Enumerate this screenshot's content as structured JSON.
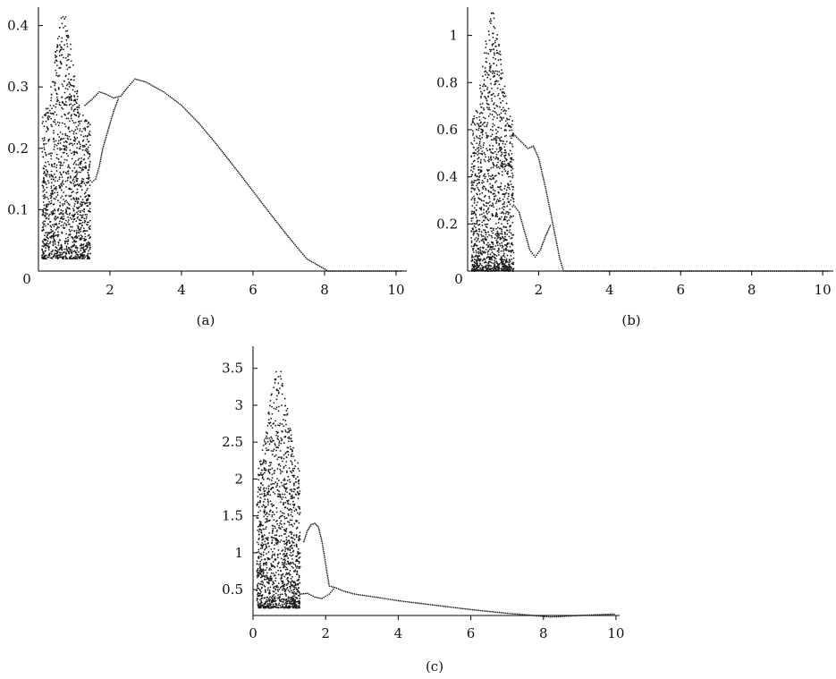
{
  "chart_data": [
    {
      "type": "scatter",
      "panel_label": "(a)",
      "origin_label": "0",
      "xlim": [
        0,
        10.3
      ],
      "ylim": [
        0,
        0.43
      ],
      "xticks": [
        2,
        4,
        6,
        8,
        10
      ],
      "xtick_labels": [
        "2",
        "4",
        "6",
        "8",
        "10"
      ],
      "yticks": [
        0.1,
        0.2,
        0.3,
        0.4
      ],
      "ytick_labels": [
        "0.1",
        "0.2",
        "0.3",
        "0.4"
      ],
      "chaotic_region": {
        "x_range": [
          0.1,
          1.45
        ],
        "y_range": [
          0.02,
          0.42
        ],
        "seed": 11
      },
      "upper_branch": [
        [
          1.3,
          0.27
        ],
        [
          1.5,
          0.28
        ],
        [
          1.7,
          0.292
        ],
        [
          1.9,
          0.288
        ],
        [
          2.1,
          0.282
        ],
        [
          2.3,
          0.285
        ],
        [
          2.5,
          0.3
        ],
        [
          2.7,
          0.313
        ],
        [
          3.0,
          0.308
        ],
        [
          3.5,
          0.292
        ],
        [
          4.0,
          0.27
        ],
        [
          4.5,
          0.24
        ],
        [
          5.0,
          0.205
        ],
        [
          5.5,
          0.168
        ],
        [
          6.0,
          0.13
        ],
        [
          6.5,
          0.092
        ],
        [
          7.0,
          0.055
        ],
        [
          7.5,
          0.02
        ],
        [
          8.1,
          0.0
        ],
        [
          10.2,
          0.0
        ]
      ],
      "lower_branch": [
        [
          1.4,
          0.15
        ],
        [
          1.5,
          0.145
        ],
        [
          1.6,
          0.15
        ],
        [
          1.7,
          0.17
        ],
        [
          1.8,
          0.2
        ],
        [
          1.95,
          0.23
        ],
        [
          2.1,
          0.26
        ],
        [
          2.25,
          0.283
        ]
      ]
    },
    {
      "type": "scatter",
      "panel_label": "(b)",
      "origin_label": "0",
      "xlim": [
        0,
        10.3
      ],
      "ylim": [
        0,
        1.12
      ],
      "xticks": [
        2,
        4,
        6,
        8,
        10
      ],
      "xtick_labels": [
        "2",
        "4",
        "6",
        "8",
        "10"
      ],
      "yticks": [
        0.2,
        0.4,
        0.6,
        0.8,
        1.0
      ],
      "ytick_labels": [
        "0.2",
        "0.4",
        "0.6",
        "0.8",
        "1"
      ],
      "chaotic_region": {
        "x_range": [
          0.1,
          1.3
        ],
        "y_range": [
          0.0,
          1.1
        ],
        "seed": 23
      },
      "upper_branch": [
        [
          1.3,
          0.58
        ],
        [
          1.5,
          0.55
        ],
        [
          1.7,
          0.52
        ],
        [
          1.85,
          0.53
        ],
        [
          2.0,
          0.48
        ],
        [
          2.2,
          0.35
        ],
        [
          2.4,
          0.2
        ],
        [
          2.6,
          0.05
        ],
        [
          2.7,
          0.0
        ],
        [
          10.2,
          0.0
        ]
      ],
      "lower_branch": [
        [
          1.3,
          0.28
        ],
        [
          1.45,
          0.25
        ],
        [
          1.6,
          0.17
        ],
        [
          1.75,
          0.09
        ],
        [
          1.9,
          0.06
        ],
        [
          2.05,
          0.09
        ],
        [
          2.2,
          0.15
        ],
        [
          2.35,
          0.2
        ]
      ]
    },
    {
      "type": "scatter",
      "panel_label": "(c)",
      "origin_label": "",
      "xlim": [
        0,
        10.1
      ],
      "ylim": [
        0.15,
        3.8
      ],
      "xticks": [
        0,
        2,
        4,
        6,
        8,
        10
      ],
      "xtick_labels": [
        "0",
        "2",
        "4",
        "6",
        "8",
        "10"
      ],
      "yticks": [
        0.5,
        1.0,
        1.5,
        2.0,
        2.5,
        3.0,
        3.5
      ],
      "ytick_labels": [
        "0.5",
        "1",
        "1.5",
        "2",
        "2.5",
        "3",
        "3.5"
      ],
      "chaotic_region": {
        "x_range": [
          0.1,
          1.3
        ],
        "y_range": [
          0.25,
          3.6
        ],
        "seed": 37
      },
      "upper_branch": [
        [
          1.4,
          1.15
        ],
        [
          1.5,
          1.3
        ],
        [
          1.6,
          1.38
        ],
        [
          1.7,
          1.4
        ],
        [
          1.8,
          1.35
        ],
        [
          1.9,
          1.15
        ],
        [
          2.0,
          0.85
        ],
        [
          2.1,
          0.55
        ],
        [
          2.25,
          0.53
        ],
        [
          2.5,
          0.48
        ],
        [
          2.8,
          0.44
        ],
        [
          3.5,
          0.39
        ],
        [
          4.0,
          0.35
        ],
        [
          5.0,
          0.29
        ],
        [
          6.0,
          0.23
        ],
        [
          7.0,
          0.18
        ],
        [
          8.2,
          0.13
        ],
        [
          9.0,
          0.15
        ],
        [
          10.0,
          0.17
        ]
      ],
      "lower_branch": [
        [
          1.3,
          0.44
        ],
        [
          1.5,
          0.45
        ],
        [
          1.7,
          0.4
        ],
        [
          1.9,
          0.38
        ],
        [
          2.1,
          0.44
        ],
        [
          2.25,
          0.53
        ]
      ]
    }
  ]
}
